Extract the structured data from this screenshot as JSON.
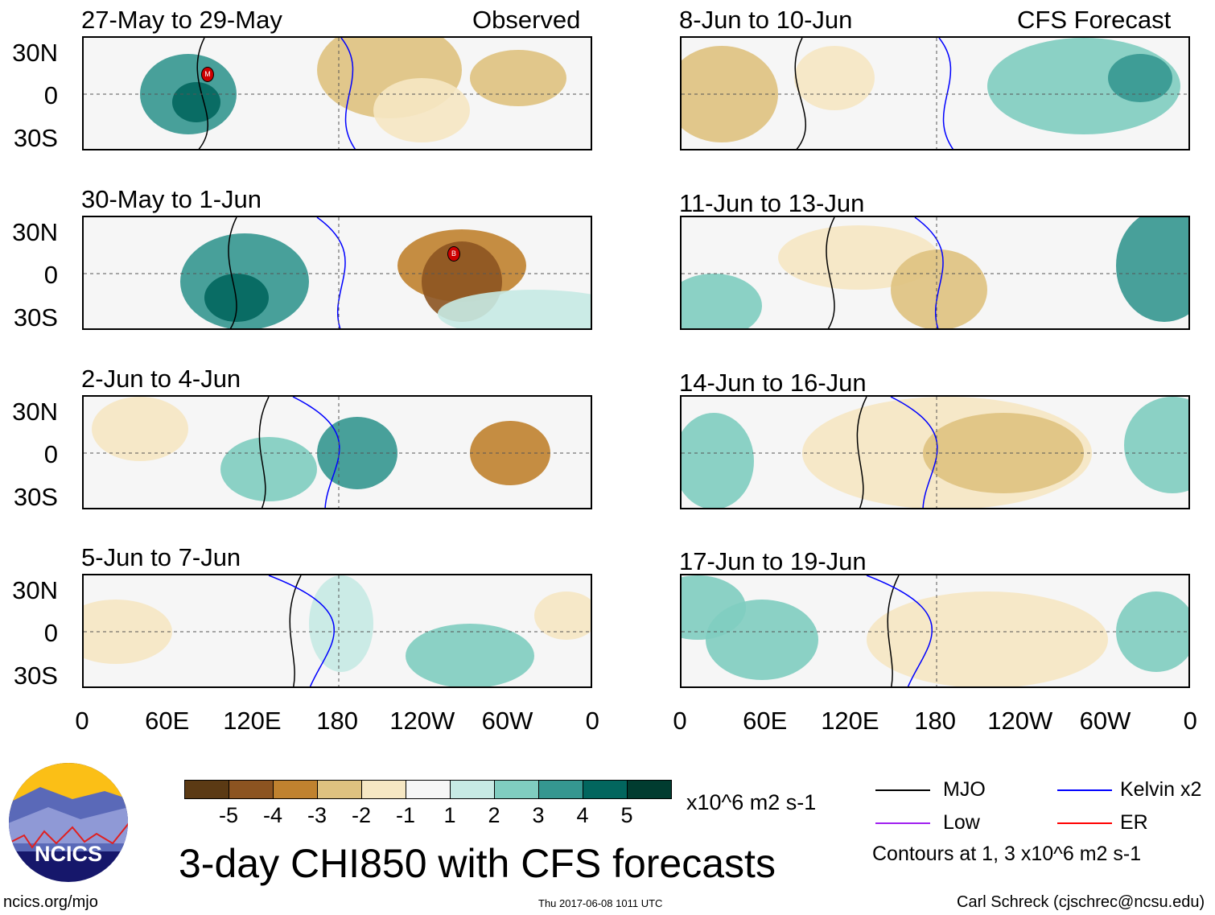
{
  "header": {
    "observed_label": "Observed",
    "forecast_label": "CFS Forecast"
  },
  "panels": {
    "left": [
      "27-May to 29-May",
      "30-May to 1-Jun",
      "2-Jun to 4-Jun",
      "5-Jun to 7-Jun"
    ],
    "right": [
      "8-Jun to 10-Jun",
      "11-Jun to 13-Jun",
      "14-Jun to 16-Jun",
      "17-Jun to 19-Jun"
    ]
  },
  "markers": {
    "mjo_marker": "M",
    "b_marker": "B"
  },
  "axes": {
    "lat_labels": [
      "30N",
      "0",
      "30S"
    ],
    "lon_labels": [
      "0",
      "60E",
      "120E",
      "180",
      "120W",
      "60W",
      "0"
    ]
  },
  "colorbar": {
    "colors": [
      "#5b3a14",
      "#8c5421",
      "#c0822f",
      "#dfc280",
      "#f6e7c3",
      "#f6f6f6",
      "#c7eae4",
      "#80cdc0",
      "#359790",
      "#02665e",
      "#013c30"
    ],
    "labels": [
      "-5",
      "-4",
      "-3",
      "-2",
      "-1",
      "1",
      "2",
      "3",
      "4",
      "5"
    ],
    "units": "x10^6 m2 s-1"
  },
  "title": "3-day CHI850 with CFS forecasts",
  "legend": {
    "items": [
      {
        "label": "MJO",
        "color": "#000000"
      },
      {
        "label": "Kelvin x2",
        "color": "#0000ff"
      },
      {
        "label": "Low",
        "color": "#a020f0"
      },
      {
        "label": "ER",
        "color": "#ff0000"
      }
    ],
    "contours_note": "Contours at 1, 3 x10^6 m2 s-1"
  },
  "logo": {
    "text": "NCICS"
  },
  "footer": {
    "url": "ncics.org/mjo",
    "timestamp": "Thu 2017-06-08 1011 UTC",
    "credit": "Carl Schreck (cjschrec@ncsu.edu)"
  }
}
